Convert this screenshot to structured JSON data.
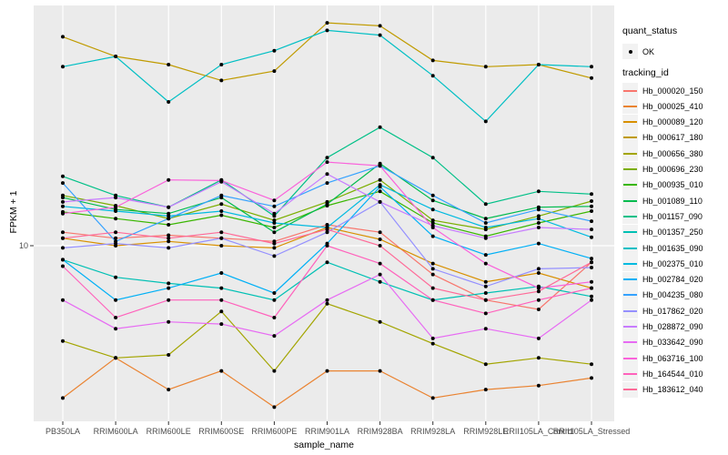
{
  "figure": {
    "y_tick_label": "10"
  },
  "legend": {
    "quant_status_title": "quant_status",
    "ok_label": "OK",
    "tracking_id_title": "tracking_id"
  },
  "chart_data": {
    "type": "line",
    "title": "",
    "xlabel": "sample_name",
    "ylabel": "FPKM + 1",
    "y_scale": "log10",
    "y_ticks": [
      10
    ],
    "ylim": [
      2,
      89
    ],
    "grid": true,
    "legend_position": "right",
    "panel_background": "#EBEBEB",
    "gridline_color": "#FFFFFF",
    "point_color": "#000000",
    "axis_text_color": "#4d4d4d",
    "categories": [
      "PB350LA",
      "RRIM600LA",
      "RRIM600LE",
      "RRIM600SE",
      "RRIM600PE",
      "RRIM901LA",
      "RRIM928BA",
      "RRIM928LA",
      "RRIM928LE",
      "RRII105LA_Control",
      "RRII105LA_Stressed"
    ],
    "quant_status_values": [
      "OK"
    ],
    "series": [
      {
        "name": "Hb_000020_150",
        "color": "#F8766D",
        "values": [
          11.3,
          10.7,
          11.0,
          10.7,
          10.4,
          12.1,
          11.3,
          7.7,
          6.1,
          5.6,
          8.6
        ]
      },
      {
        "name": "Hb_000025_410",
        "color": "#EA8331",
        "values": [
          2.5,
          3.6,
          2.7,
          3.2,
          2.3,
          3.2,
          3.2,
          2.5,
          2.7,
          2.8,
          3.0
        ]
      },
      {
        "name": "Hb_000089_120",
        "color": "#D89000",
        "values": [
          10.7,
          10.0,
          10.4,
          10.0,
          9.8,
          11.8,
          10.6,
          8.5,
          7.2,
          7.8,
          6.8
        ]
      },
      {
        "name": "Hb_000617_180",
        "color": "#C09B00",
        "values": [
          67,
          56,
          52,
          45,
          49,
          76,
          74,
          54,
          51,
          52,
          46
        ]
      },
      {
        "name": "Hb_000656_380",
        "color": "#A3A500",
        "values": [
          4.2,
          3.6,
          3.7,
          5.5,
          3.2,
          5.9,
          5.0,
          4.1,
          3.4,
          3.6,
          3.4
        ]
      },
      {
        "name": "Hb_000696_230",
        "color": "#7CAE00",
        "values": [
          15.8,
          14.4,
          12.8,
          14.6,
          12.6,
          14.9,
          18.2,
          12.6,
          11.6,
          13.1,
          15.0
        ]
      },
      {
        "name": "Hb_000935_010",
        "color": "#39B600",
        "values": [
          13.6,
          12.8,
          12.1,
          13.2,
          11.8,
          14.4,
          16.4,
          12.3,
          10.9,
          12.3,
          13.7
        ]
      },
      {
        "name": "Hb_001089_110",
        "color": "#00BB4E",
        "values": [
          15.5,
          13.9,
          13.4,
          15.5,
          11.3,
          14.6,
          21.1,
          15.1,
          12.8,
          14.2,
          14.3
        ]
      },
      {
        "name": "Hb_001157_090",
        "color": "#00C087",
        "values": [
          18.8,
          15.8,
          14.2,
          18.2,
          13.1,
          22.3,
          29.4,
          22.3,
          14.6,
          16.4,
          16.0
        ]
      },
      {
        "name": "Hb_001357_250",
        "color": "#00C0B4",
        "values": [
          8.8,
          7.5,
          7.1,
          6.8,
          6.1,
          8.6,
          7.2,
          6.1,
          6.5,
          6.9,
          6.3
        ]
      },
      {
        "name": "Hb_001635_090",
        "color": "#00BFC4",
        "values": [
          51,
          56,
          37,
          52,
          59,
          71,
          68,
          47,
          31,
          52,
          51
        ]
      },
      {
        "name": "Hb_002375_010",
        "color": "#00BAE0",
        "values": [
          14.3,
          13.7,
          13.1,
          13.7,
          12.3,
          11.8,
          17.4,
          13.9,
          11.8,
          12.8,
          10.8
        ]
      },
      {
        "name": "Hb_002784_020",
        "color": "#00B0F6",
        "values": [
          8.8,
          6.1,
          6.8,
          7.8,
          6.5,
          10.2,
          17.1,
          10.9,
          9.2,
          10.2,
          8.9
        ]
      },
      {
        "name": "Hb_004235_080",
        "color": "#35A2FF",
        "values": [
          17.7,
          10.4,
          12.8,
          15.8,
          14.3,
          17.7,
          20.7,
          15.8,
          12.3,
          13.9,
          12.5
        ]
      },
      {
        "name": "Hb_017862_020",
        "color": "#9590FF",
        "values": [
          9.8,
          10.2,
          9.8,
          10.7,
          9.1,
          11.3,
          14.9,
          8.1,
          6.9,
          8.1,
          8.2
        ]
      },
      {
        "name": "Hb_028872_090",
        "color": "#C77CFF",
        "values": [
          14.9,
          15.5,
          14.2,
          17.9,
          13.4,
          19.2,
          14.9,
          12.0,
          10.7,
          11.8,
          11.6
        ]
      },
      {
        "name": "Hb_033642_090",
        "color": "#E76BF3",
        "values": [
          6.1,
          4.7,
          5.0,
          4.9,
          4.4,
          6.1,
          7.7,
          4.3,
          4.7,
          4.3,
          6.1
        ]
      },
      {
        "name": "Hb_063716_100",
        "color": "#FA62DB",
        "values": [
          13.4,
          14.2,
          18.2,
          18.1,
          15.1,
          21.4,
          20.7,
          11.8,
          8.5,
          6.8,
          7.2
        ]
      },
      {
        "name": "Hb_164544_010",
        "color": "#FF62BC",
        "values": [
          8.3,
          5.2,
          6.1,
          6.1,
          5.2,
          10.0,
          8.5,
          6.1,
          5.4,
          6.1,
          6.8
        ]
      },
      {
        "name": "Hb_183612_040",
        "color": "#FF6A98",
        "values": [
          10.7,
          11.3,
          10.7,
          11.3,
          10.2,
          11.6,
          10.0,
          6.8,
          6.1,
          6.6,
          8.6
        ]
      }
    ]
  }
}
